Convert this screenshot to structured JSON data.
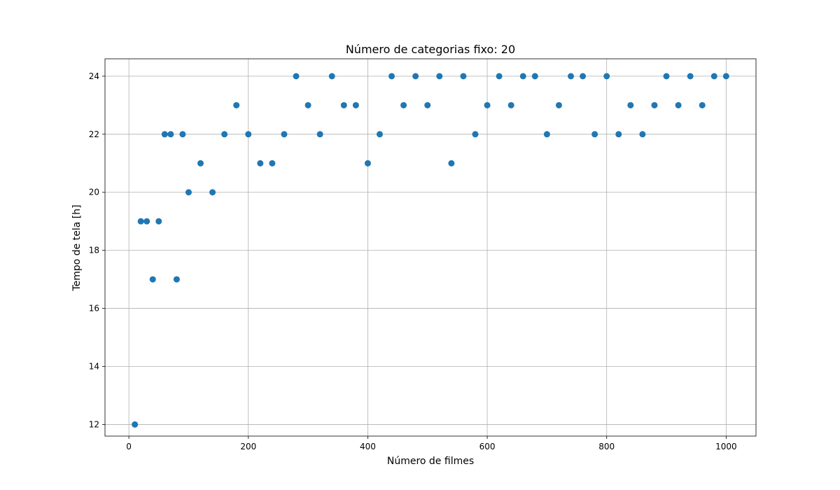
{
  "chart_data": {
    "type": "scatter",
    "title": "Número de categorias fixo: 20",
    "xlabel": "Número de filmes",
    "ylabel": "Tempo de tela [h]",
    "xlim": [
      -40,
      1050
    ],
    "ylim": [
      11.6,
      24.6
    ],
    "xticks": [
      0,
      200,
      400,
      600,
      800,
      1000
    ],
    "yticks": [
      12,
      14,
      16,
      18,
      20,
      22,
      24
    ],
    "xtick_labels": [
      "0",
      "200",
      "400",
      "600",
      "800",
      "1000"
    ],
    "ytick_labels": [
      "12",
      "14",
      "16",
      "18",
      "20",
      "22",
      "24"
    ],
    "grid": true,
    "marker_color": "#1f77b4",
    "x": [
      10,
      20,
      30,
      40,
      50,
      60,
      70,
      80,
      90,
      100,
      120,
      140,
      160,
      180,
      200,
      220,
      240,
      260,
      280,
      300,
      320,
      340,
      360,
      380,
      400,
      420,
      440,
      460,
      480,
      500,
      520,
      540,
      560,
      580,
      600,
      620,
      640,
      660,
      680,
      700,
      720,
      740,
      760,
      780,
      800,
      820,
      840,
      860,
      880,
      900,
      920,
      940,
      960,
      980,
      1000
    ],
    "y": [
      12,
      19,
      19,
      17,
      19,
      22,
      22,
      17,
      22,
      20,
      21,
      20,
      22,
      23,
      22,
      21,
      21,
      22,
      24,
      23,
      22,
      24,
      23,
      23,
      21,
      22,
      24,
      23,
      24,
      23,
      24,
      21,
      24,
      22,
      23,
      24,
      23,
      24,
      24,
      22,
      23,
      24,
      24,
      22,
      24,
      22,
      23,
      22,
      23,
      24,
      23,
      24,
      23,
      24,
      24
    ]
  }
}
